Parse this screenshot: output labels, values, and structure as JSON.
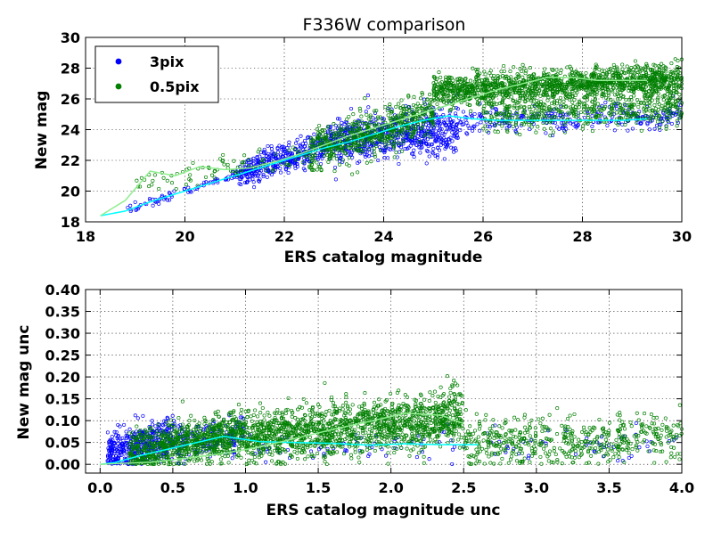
{
  "figure_title": "F336W comparison",
  "chart_data": [
    {
      "type": "scatter",
      "title": "F336W comparison",
      "xlabel": "ERS catalog magnitude",
      "ylabel": "New mag",
      "xlim": [
        18,
        30
      ],
      "ylim": [
        18,
        30
      ],
      "xticks": [
        "18",
        "20",
        "22",
        "24",
        "26",
        "28",
        "30"
      ],
      "yticks": [
        "18",
        "20",
        "22",
        "24",
        "26",
        "28",
        "30"
      ],
      "grid": true,
      "legend_position": "top-left",
      "series": [
        {
          "name": "3pix",
          "color": "#0000ff",
          "marker": "circle-open",
          "trend_color": "#00ffff",
          "trend": {
            "x": [
              18.3,
              18.8,
              19.3,
              19.8,
              20.3,
              20.8,
              21.3,
              21.8,
              22.3,
              22.8,
              23.3,
              23.8,
              24.3,
              24.8,
              25.3,
              25.8,
              26.3,
              26.8,
              27.3,
              27.8,
              28.3,
              28.8,
              29.3
            ],
            "y": [
              18.4,
              18.7,
              19.3,
              19.8,
              20.3,
              20.8,
              21.3,
              21.8,
              22.3,
              22.8,
              23.2,
              23.7,
              24.2,
              24.6,
              24.9,
              24.7,
              24.6,
              24.6,
              24.6,
              24.6,
              24.6,
              24.6,
              24.7
            ]
          },
          "cloud": [
            {
              "x": [
                18.8,
                21.0
              ],
              "y_mid": [
                18.8,
                21.0
              ],
              "y_spread": 0.3,
              "n": 70
            },
            {
              "x": [
                21.0,
                23.0
              ],
              "y_mid": [
                21.0,
                23.2
              ],
              "y_spread": 1.0,
              "n": 420
            },
            {
              "x": [
                23.0,
                25.5
              ],
              "y_mid": [
                23.2,
                24.0
              ],
              "y_spread": 1.5,
              "n": 620
            },
            {
              "x": [
                25.5,
                30.0
              ],
              "y_mid": [
                24.6,
                24.8
              ],
              "y_spread": 0.9,
              "n": 260
            }
          ]
        },
        {
          "name": "0.5pix",
          "color": "#007f00",
          "marker": "circle-open",
          "trend_color": "#90ee90",
          "trend": {
            "x": [
              18.3,
              18.8,
              19.3,
              19.8,
              20.3,
              20.8,
              21.3,
              21.8,
              22.3,
              22.8,
              23.3,
              23.8,
              24.3,
              24.8,
              25.3,
              25.8,
              26.3,
              26.8,
              27.3,
              27.8,
              28.3,
              28.8,
              29.3
            ],
            "y": [
              18.4,
              19.4,
              21.3,
              21.0,
              21.6,
              21.4,
              21.5,
              21.9,
              22.4,
              23.0,
              23.6,
              24.1,
              24.6,
              25.1,
              25.6,
              26.1,
              26.6,
              27.0,
              27.4,
              27.4,
              27.2,
              27.2,
              27.2
            ]
          },
          "cloud": [
            {
              "x": [
                19.0,
                22.5
              ],
              "y_mid": [
                20.5,
                22.4
              ],
              "y_spread": 0.8,
              "n": 90
            },
            {
              "x": [
                22.5,
                25.0
              ],
              "y_mid": [
                22.5,
                25.0
              ],
              "y_spread": 1.4,
              "n": 600
            },
            {
              "x": [
                25.0,
                30.0
              ],
              "y_mid": [
                26.5,
                27.3
              ],
              "y_spread": 1.0,
              "n": 1400
            },
            {
              "x": [
                26.0,
                30.0
              ],
              "y_mid": [
                25.0,
                25.5
              ],
              "y_spread": 1.2,
              "n": 500
            }
          ]
        }
      ]
    },
    {
      "type": "scatter",
      "xlabel": "ERS catalog magnitude unc",
      "ylabel": "New mag unc",
      "xlim": [
        -0.1,
        4.0
      ],
      "ylim": [
        -0.02,
        0.4
      ],
      "xticks": [
        "0.0",
        "0.5",
        "1.0",
        "1.5",
        "2.0",
        "2.5",
        "3.0",
        "3.5",
        "4.0"
      ],
      "yticks": [
        "0.00",
        "0.05",
        "0.10",
        "0.15",
        "0.20",
        "0.25",
        "0.30",
        "0.35",
        "0.40"
      ],
      "grid": true,
      "series": [
        {
          "name": "3pix",
          "color": "#0000ff",
          "marker": "circle-open",
          "trend_color": "#00ffff",
          "trend": {
            "x": [
              0.0,
              0.1,
              0.3,
              0.6,
              0.85,
              1.1,
              1.35,
              1.6,
              1.85,
              2.1,
              2.35,
              2.6
            ],
            "y": [
              0.0,
              0.004,
              0.022,
              0.045,
              0.064,
              0.052,
              0.05,
              0.048,
              0.044,
              0.047,
              0.045,
              0.045
            ]
          },
          "cloud": [
            {
              "x": [
                0.05,
                0.5
              ],
              "y_mid": [
                0.02,
                0.06
              ],
              "y_spread": 0.05,
              "n": 420
            },
            {
              "x": [
                0.5,
                1.0
              ],
              "y_mid": [
                0.05,
                0.06
              ],
              "y_spread": 0.045,
              "n": 180
            },
            {
              "x": [
                1.0,
                4.0
              ],
              "y_mid": [
                0.04,
                0.05
              ],
              "y_spread": 0.04,
              "n": 110
            }
          ]
        },
        {
          "name": "0.5pix",
          "color": "#007f00",
          "marker": "circle-open",
          "trend_color": "#90ee90",
          "trend": {
            "x": [
              0.0,
              0.35,
              0.6,
              0.85,
              1.1,
              1.35,
              1.6,
              1.85,
              2.1,
              2.35,
              2.5
            ],
            "y": [
              0.0,
              0.005,
              0.014,
              0.025,
              0.04,
              0.06,
              0.08,
              0.098,
              0.117,
              0.112,
              0.093
            ]
          },
          "cloud": [
            {
              "x": [
                0.2,
                1.0
              ],
              "y_mid": [
                0.03,
                0.07
              ],
              "y_spread": 0.05,
              "n": 800
            },
            {
              "x": [
                1.0,
                2.5
              ],
              "y_mid": [
                0.06,
                0.11
              ],
              "y_spread": 0.06,
              "n": 1400
            },
            {
              "x": [
                2.5,
                4.0
              ],
              "y_mid": [
                0.05,
                0.06
              ],
              "y_spread": 0.06,
              "n": 500
            }
          ]
        }
      ]
    }
  ]
}
